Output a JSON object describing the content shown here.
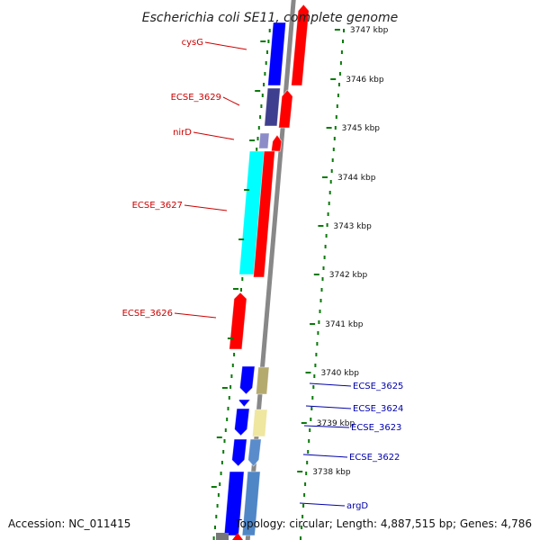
{
  "title": "Escherichia coli SE11, complete genome",
  "accession": "Accession: NC_011415",
  "topology": "Topology: circular; Length: 4,887,515 bp; Genes: 4,786",
  "colors": {
    "backbone": "#888888",
    "tick": "#0a7a0a",
    "label_left": "#cc0000",
    "label_right": "#0000aa",
    "forward_cds": "#ff0000",
    "cysG": "#0000ff",
    "ECSE_3629": "#3f3f8f",
    "nirD": "#8c8cc8",
    "ECSE_3627": "#00ffff",
    "reverse_cds": "#0000ff",
    "ECSE_3625_col": "#b4aa6e",
    "ECSE_3623_col": "#efe6a0",
    "ECSE_3622_col": "#5a8ccc",
    "argD_col": "#4f86c6"
  },
  "chart_data": {
    "type": "linear-genome-map",
    "ticks": [
      {
        "label": "3747 kbp"
      },
      {
        "label": "3746 kbp"
      },
      {
        "label": "3745 kbp"
      },
      {
        "label": "3744 kbp"
      },
      {
        "label": "3743 kbp"
      },
      {
        "label": "3742 kbp"
      },
      {
        "label": "3741 kbp"
      },
      {
        "label": "3740 kbp"
      },
      {
        "label": "3739 kbp"
      },
      {
        "label": "3738 kbp"
      }
    ],
    "left_labels": [
      {
        "name": "cysG"
      },
      {
        "name": "ECSE_3629"
      },
      {
        "name": "nirD"
      },
      {
        "name": "ECSE_3627"
      },
      {
        "name": "ECSE_3626"
      }
    ],
    "right_labels": [
      {
        "name": "ECSE_3625"
      },
      {
        "name": "ECSE_3624"
      },
      {
        "name": "ECSE_3623"
      },
      {
        "name": "ECSE_3622"
      },
      {
        "name": "argD"
      }
    ]
  }
}
